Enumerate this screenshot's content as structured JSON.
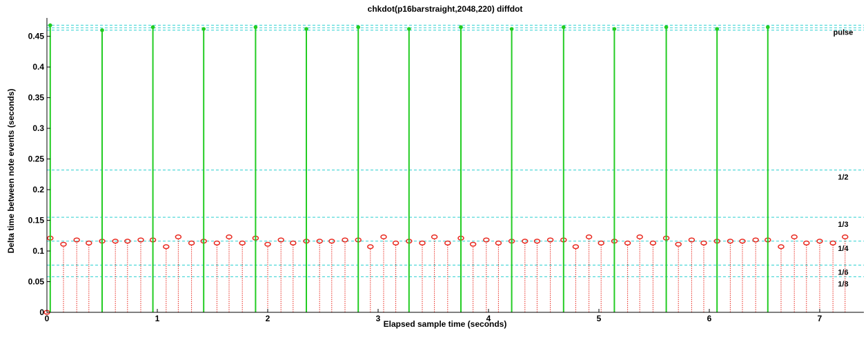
{
  "chart_data": {
    "type": "scatter",
    "title": "chkdot(p16barstraight,2048,220) diffdot",
    "xlabel": "Elapsed sample time (seconds)",
    "ylabel": "Delta time between note events (seconds)",
    "xlim": [
      0,
      7.4
    ],
    "ylim": [
      0,
      0.48
    ],
    "x_ticks": [
      0,
      1,
      2,
      3,
      4,
      5,
      6,
      7
    ],
    "y_ticks": [
      0,
      0.05,
      0.1,
      0.15,
      0.2,
      0.25,
      0.3,
      0.35,
      0.4,
      0.45
    ],
    "grid": false,
    "colors": {
      "pulse": "#22cc22",
      "note": "#e8281e",
      "reference": "#2ad0d0"
    },
    "reference_lines": [
      {
        "label": "pulse",
        "y": 0.468
      },
      {
        "label": "",
        "y": 0.464
      },
      {
        "label": "",
        "y": 0.46
      },
      {
        "label": "1/2",
        "y": 0.232
      },
      {
        "label": "1/3",
        "y": 0.155
      },
      {
        "label": "1/4",
        "y": 0.116
      },
      {
        "label": "1/6",
        "y": 0.077
      },
      {
        "label": "1/8",
        "y": 0.058
      }
    ],
    "series": [
      {
        "marker": "filled-dot-stem",
        "x": [
          0.03,
          0.5,
          0.96,
          1.42,
          1.89,
          2.35,
          2.82,
          3.28,
          3.75,
          4.21,
          4.68,
          5.14,
          5.61,
          6.07,
          6.53
        ],
        "y": [
          0.468,
          0.46,
          0.465,
          0.462,
          0.465,
          0.462,
          0.465,
          0.462,
          0.465,
          0.462,
          0.465,
          0.462,
          0.465,
          0.462,
          0.465
        ]
      },
      {
        "marker": "open-circle-dotted-stem",
        "x": [
          0.0,
          0.03,
          0.15,
          0.27,
          0.38,
          0.5,
          0.62,
          0.73,
          0.85,
          0.96,
          1.08,
          1.19,
          1.31,
          1.42,
          1.54,
          1.65,
          1.77,
          1.89,
          2.0,
          2.12,
          2.23,
          2.35,
          2.47,
          2.58,
          2.7,
          2.82,
          2.93,
          3.05,
          3.16,
          3.28,
          3.4,
          3.51,
          3.63,
          3.75,
          3.86,
          3.98,
          4.09,
          4.21,
          4.33,
          4.44,
          4.56,
          4.68,
          4.79,
          4.91,
          5.02,
          5.14,
          5.26,
          5.37,
          5.49,
          5.61,
          5.72,
          5.84,
          5.95,
          6.07,
          6.19,
          6.3,
          6.42,
          6.53,
          6.65,
          6.77,
          6.88,
          7.0,
          7.12,
          7.23
        ],
        "y": [
          0.0,
          0.121,
          0.111,
          0.118,
          0.113,
          0.116,
          0.116,
          0.116,
          0.118,
          0.118,
          0.107,
          0.123,
          0.113,
          0.116,
          0.113,
          0.123,
          0.113,
          0.121,
          0.111,
          0.118,
          0.113,
          0.116,
          0.116,
          0.116,
          0.118,
          0.118,
          0.107,
          0.123,
          0.113,
          0.116,
          0.113,
          0.123,
          0.113,
          0.121,
          0.111,
          0.118,
          0.113,
          0.116,
          0.116,
          0.116,
          0.118,
          0.118,
          0.107,
          0.123,
          0.113,
          0.116,
          0.113,
          0.123,
          0.113,
          0.121,
          0.111,
          0.118,
          0.113,
          0.116,
          0.116,
          0.116,
          0.118,
          0.118,
          0.107,
          0.123,
          0.113,
          0.116,
          0.113,
          0.123
        ]
      }
    ]
  }
}
